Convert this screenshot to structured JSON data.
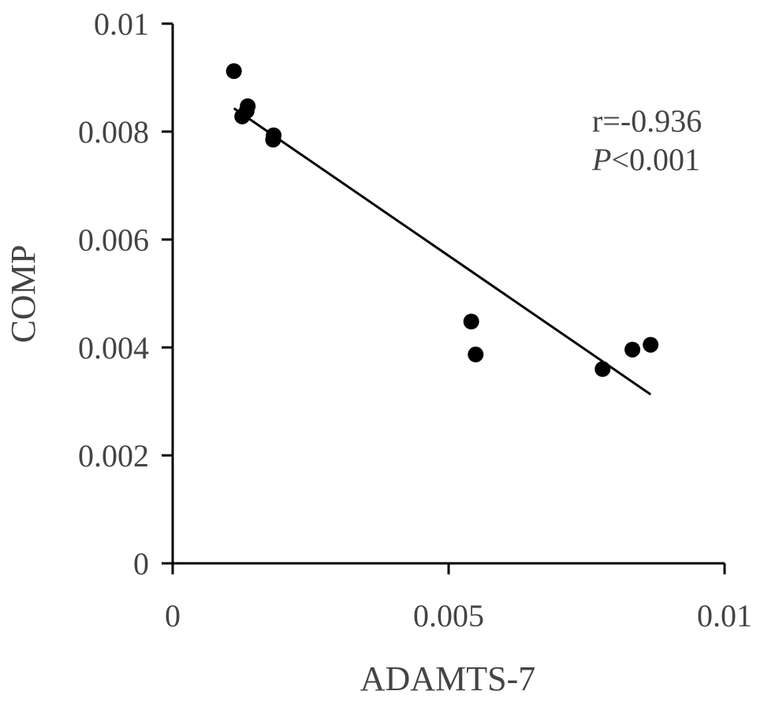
{
  "chart_data": {
    "type": "scatter",
    "xlabel": "ADAMTS-7",
    "ylabel": "COMP",
    "xlim": [
      0,
      0.01
    ],
    "ylim": [
      0,
      0.01
    ],
    "x_ticks": [
      0,
      0.005,
      0.01
    ],
    "x_tick_labels": [
      "0",
      "0.005",
      "0.01"
    ],
    "y_ticks": [
      0,
      0.002,
      0.004,
      0.006,
      0.008,
      0.01
    ],
    "y_tick_labels": [
      "0",
      "0.002",
      "0.004",
      "0.006",
      "0.008",
      "0.01"
    ],
    "grid": false,
    "points": [
      {
        "x": 0.00111,
        "y": 0.00912
      },
      {
        "x": 0.00136,
        "y": 0.00847
      },
      {
        "x": 0.00134,
        "y": 0.00838
      },
      {
        "x": 0.00126,
        "y": 0.00828
      },
      {
        "x": 0.00183,
        "y": 0.00793
      },
      {
        "x": 0.00182,
        "y": 0.00785
      },
      {
        "x": 0.00541,
        "y": 0.00448
      },
      {
        "x": 0.00549,
        "y": 0.00387
      },
      {
        "x": 0.00779,
        "y": 0.0036
      },
      {
        "x": 0.00833,
        "y": 0.00396
      },
      {
        "x": 0.00866,
        "y": 0.00405
      }
    ],
    "trendline": {
      "x": [
        0.00111,
        0.00866
      ],
      "y": [
        0.00843,
        0.00313
      ]
    },
    "annotations": {
      "r_text": "r=-0.936",
      "p_italic": "P",
      "p_rest": "<0.001"
    },
    "colors": {
      "point": "#000000",
      "line": "#000000",
      "axis": "#000000",
      "text": "#444444"
    }
  }
}
